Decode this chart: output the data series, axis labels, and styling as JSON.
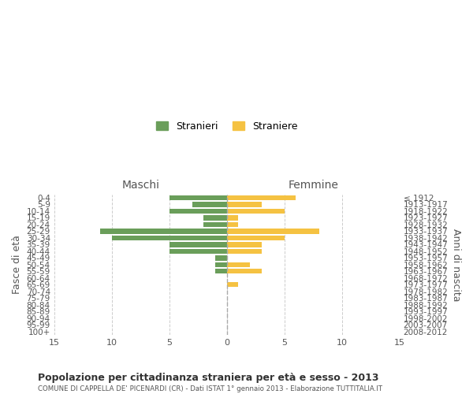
{
  "age_groups": [
    "0-4",
    "5-9",
    "10-14",
    "15-19",
    "20-24",
    "25-29",
    "30-34",
    "35-39",
    "40-44",
    "45-49",
    "50-54",
    "55-59",
    "60-64",
    "65-69",
    "70-74",
    "75-79",
    "80-84",
    "85-89",
    "90-94",
    "95-99",
    "100+"
  ],
  "birth_years": [
    "2008-2012",
    "2003-2007",
    "1998-2002",
    "1993-1997",
    "1988-1992",
    "1983-1987",
    "1978-1982",
    "1973-1977",
    "1968-1972",
    "1963-1967",
    "1958-1962",
    "1953-1957",
    "1948-1952",
    "1943-1947",
    "1938-1942",
    "1933-1937",
    "1928-1932",
    "1923-1927",
    "1918-1922",
    "1913-1917",
    "≤ 1912"
  ],
  "males": [
    5,
    3,
    5,
    2,
    2,
    11,
    10,
    5,
    5,
    1,
    1,
    1,
    0,
    0,
    0,
    0,
    0,
    0,
    0,
    0,
    0
  ],
  "females": [
    6,
    3,
    5,
    1,
    1,
    8,
    5,
    3,
    3,
    0,
    2,
    3,
    0,
    1,
    0,
    0,
    0,
    0,
    0,
    0,
    0
  ],
  "male_color": "#6a9e5a",
  "female_color": "#f5c242",
  "title": "Popolazione per cittadinanza straniera per età e sesso - 2013",
  "subtitle": "COMUNE DI CAPPELLA DE' PICENARDI (CR) - Dati ISTAT 1° gennaio 2013 - Elaborazione TUTTITALIA.IT",
  "xlabel_left": "Maschi",
  "xlabel_right": "Femmine",
  "ylabel_left": "Fasce di età",
  "ylabel_right": "Anni di nascita",
  "legend_stranieri": "Stranieri",
  "legend_straniere": "Straniere",
  "xlim": 15,
  "background_color": "#ffffff",
  "grid_color": "#cccccc"
}
